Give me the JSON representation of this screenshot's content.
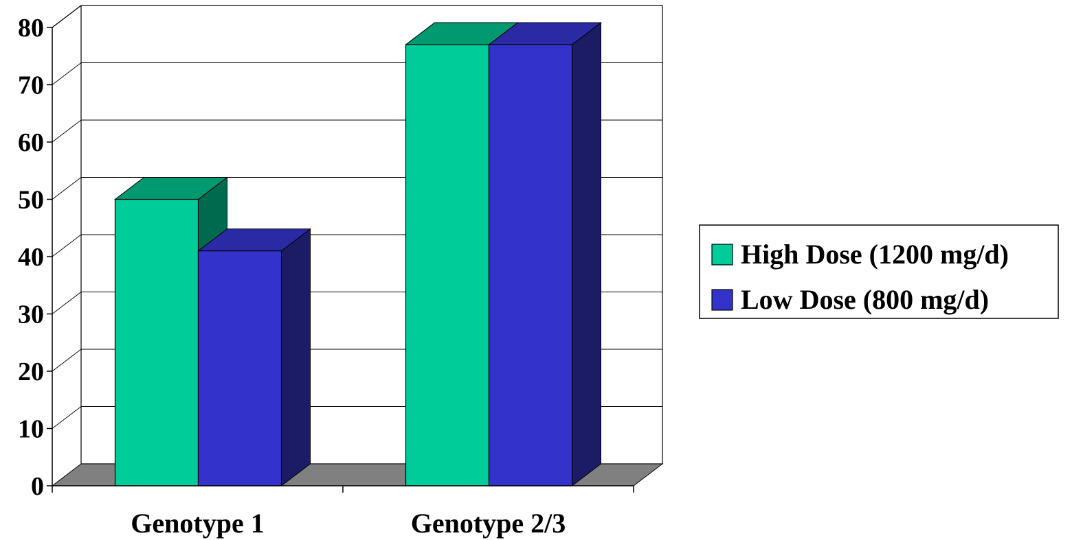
{
  "chart_data": {
    "type": "bar",
    "three_d": true,
    "categories": [
      "Genotype 1",
      "Genotype 2/3"
    ],
    "series": [
      {
        "name": "High Dose (1200 mg/d)",
        "values": [
          50,
          77
        ],
        "color": "#00CC99",
        "top_color": "#009970",
        "side_color": "#006A4E"
      },
      {
        "name": "Low Dose (800 mg/d)",
        "values": [
          41,
          77
        ],
        "color": "#3333CC",
        "top_color": "#2A2AA5",
        "side_color": "#1C1C66"
      }
    ],
    "ylim": [
      0,
      80
    ],
    "yticks": [
      0,
      10,
      20,
      30,
      40,
      50,
      60,
      70,
      80
    ],
    "grid": true,
    "legend_position": "right",
    "title": "",
    "xlabel": "",
    "ylabel": "",
    "colors": {
      "floor": "#808080",
      "gridline": "#000000",
      "background": "#FFFFFF"
    }
  }
}
